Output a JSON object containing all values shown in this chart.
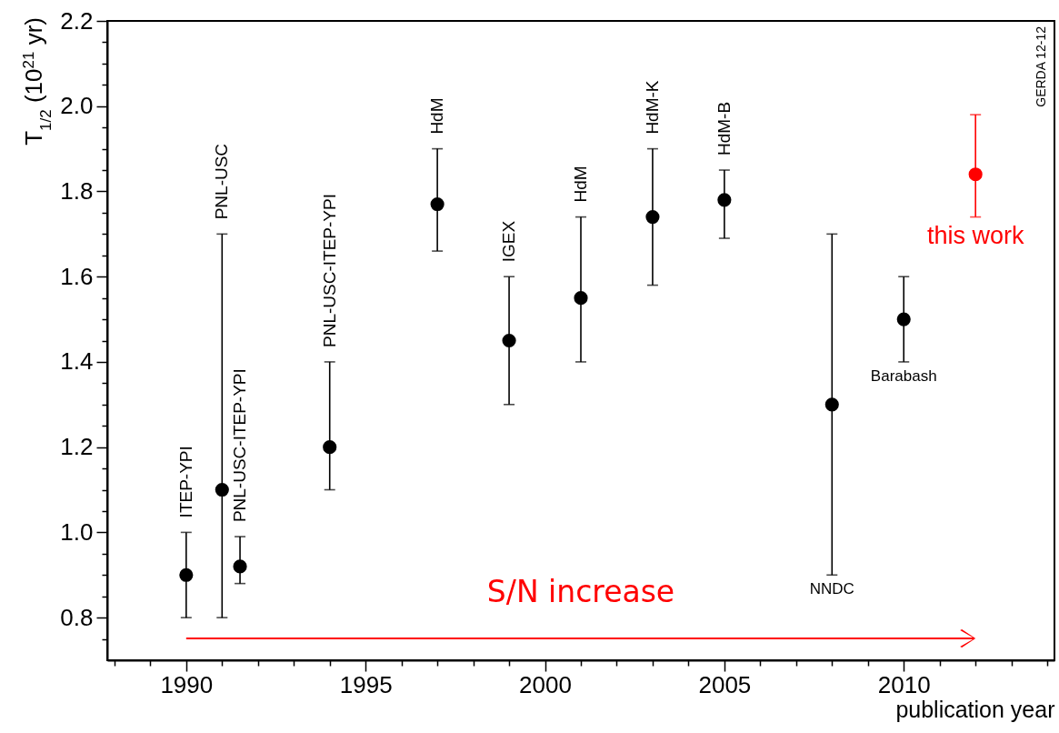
{
  "chart_data": {
    "type": "scatter",
    "xlabel": "publication year",
    "ylabel": "T$_{1/2}$ (10$^{21}$ yr)",
    "marker": "circle",
    "grid": false,
    "legend": false,
    "xlim": [
      1987.8,
      2014.2
    ],
    "ylim": [
      0.7,
      2.2
    ],
    "xticks": [
      {
        "value": 1988,
        "label": null
      },
      {
        "value": 1989,
        "label": null
      },
      1990,
      {
        "value": 1991,
        "label": null
      },
      {
        "value": 1992,
        "label": null
      },
      {
        "value": 1993,
        "label": null
      },
      {
        "value": 1994,
        "label": null
      },
      1995,
      {
        "value": 1996,
        "label": null
      },
      {
        "value": 1997,
        "label": null
      },
      {
        "value": 1998,
        "label": null
      },
      {
        "value": 1999,
        "label": null
      },
      2000,
      {
        "value": 2001,
        "label": null
      },
      {
        "value": 2002,
        "label": null
      },
      {
        "value": 2003,
        "label": null
      },
      {
        "value": 2004,
        "label": null
      },
      2005,
      {
        "value": 2006,
        "label": null
      },
      {
        "value": 2007,
        "label": null
      },
      {
        "value": 2008,
        "label": null
      },
      {
        "value": 2009,
        "label": null
      },
      2010,
      {
        "value": 2011,
        "label": null
      },
      {
        "value": 2012,
        "label": null
      },
      {
        "value": 2013,
        "label": null
      },
      {
        "value": 2014,
        "label": null
      }
    ],
    "yticks": [
      {
        "value": 0.75,
        "label": null
      },
      0.8,
      {
        "value": 0.85,
        "label": null
      },
      {
        "value": 0.9,
        "label": null
      },
      {
        "value": 0.95,
        "label": null
      },
      {
        "value": 1,
        "label": "1.0"
      },
      {
        "value": 1.05,
        "label": null
      },
      {
        "value": 1.1,
        "label": null
      },
      {
        "value": 1.15,
        "label": null
      },
      1.2,
      {
        "value": 1.25,
        "label": null
      },
      {
        "value": 1.3,
        "label": null
      },
      {
        "value": 1.35,
        "label": null
      },
      1.4,
      {
        "value": 1.45,
        "label": null
      },
      {
        "value": 1.5,
        "label": null
      },
      {
        "value": 1.55,
        "label": null
      },
      1.6,
      {
        "value": 1.65,
        "label": null
      },
      {
        "value": 1.7,
        "label": null
      },
      {
        "value": 1.75,
        "label": null
      },
      1.8,
      {
        "value": 1.85,
        "label": null
      },
      {
        "value": 1.9,
        "label": null
      },
      {
        "value": 1.95,
        "label": null
      },
      {
        "value": 2,
        "label": "2.0"
      },
      {
        "value": 2.05,
        "label": null
      },
      {
        "value": 2.1,
        "label": null
      },
      {
        "value": 2.15,
        "label": null
      },
      2.2
    ],
    "series": [
      {
        "color": "#000000",
        "x": [
          1990,
          1991,
          1991.5,
          1994,
          1997,
          1999,
          2001,
          2003,
          2005,
          2008,
          2010
        ],
        "values": [
          0.9,
          1.1,
          0.92,
          1.2,
          1.77,
          1.45,
          1.55,
          1.74,
          1.78,
          1.3,
          1.5
        ],
        "errors": [
          [
            0.8,
            1.0
          ],
          [
            0.8,
            1.7
          ],
          [
            0.88,
            0.99
          ],
          [
            1.1,
            1.4
          ],
          [
            1.66,
            1.9
          ],
          [
            1.3,
            1.6
          ],
          [
            1.4,
            1.74
          ],
          [
            1.58,
            1.9
          ],
          [
            1.69,
            1.85
          ],
          [
            0.9,
            1.7
          ],
          [
            1.4,
            1.6
          ]
        ]
      },
      {
        "color": "#ff0000",
        "x": [
          2012
        ],
        "values": [
          1.84
        ],
        "errors": [
          [
            1.74,
            1.98
          ]
        ]
      }
    ],
    "annotations": [
      "GERDA 12-12",
      "S/N increase",
      {
        "text": "ITEP-YPI",
        "x": 1990,
        "y": 1.0
      },
      {
        "text": "PNL-USC",
        "x": 1991,
        "y": 1.7
      },
      {
        "text": "PNL-USC-ITEP-YPI",
        "x": 1991.5,
        "y": 0.99
      },
      {
        "text": "PNL-USC-ITEP-YPI",
        "x": 1994,
        "y": 1.4
      },
      {
        "text": "HdM",
        "x": 1997,
        "y": 1.9
      },
      {
        "text": "IGEX",
        "x": 1999,
        "y": 1.6
      },
      {
        "text": "HdM",
        "x": 2001,
        "y": 1.74
      },
      {
        "text": "HdM-K",
        "x": 2003,
        "y": 1.9
      },
      {
        "text": "HdM-B",
        "x": 2005,
        "y": 1.85
      },
      {
        "text": "NNDC",
        "x": 2008,
        "y": 0.9
      },
      {
        "text": "Barabash",
        "x": 2010,
        "y": 1.4
      },
      {
        "text": "this work",
        "x": 2012,
        "y": 1.74
      }
    ]
  }
}
